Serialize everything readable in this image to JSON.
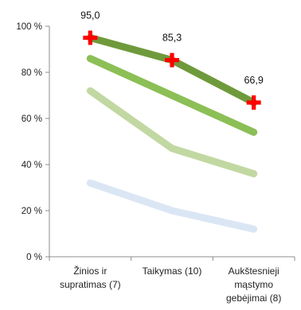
{
  "chart_data": {
    "type": "line",
    "categories": [
      [
        "Žinios ir",
        "supratimas (7)"
      ],
      [
        "Taikymas (10)"
      ],
      [
        "Aukštesnieji",
        "mąstymo",
        "gebėjimai (8)"
      ]
    ],
    "ylim": [
      0,
      100
    ],
    "yticks": [
      0,
      20,
      40,
      60,
      80,
      100
    ],
    "ytick_labels": [
      "0 %",
      "20 %",
      "40 %",
      "60 %",
      "80 %",
      "100 %"
    ],
    "grid": false,
    "legend": "none",
    "series": [
      {
        "values": [
          32,
          20,
          12
        ],
        "color": "#dbe6f5"
      },
      {
        "values": [
          72,
          47,
          36
        ],
        "color": "#c2d8a2"
      },
      {
        "values": [
          86,
          70,
          54
        ],
        "color": "#8cbf56"
      },
      {
        "values": [
          95.0,
          85.3,
          66.9
        ],
        "color": "#6f9a3c",
        "marker": "cross",
        "marker_color": "#ff0000",
        "data_labels": [
          "95,0",
          "85,3",
          "66,9"
        ]
      }
    ]
  }
}
